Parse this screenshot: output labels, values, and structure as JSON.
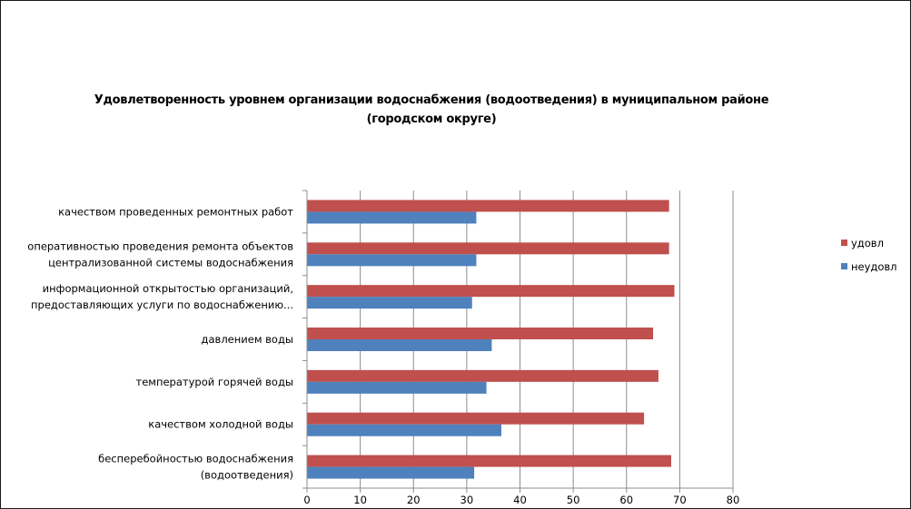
{
  "chart_data": {
    "type": "bar",
    "orientation": "horizontal",
    "title_lines": [
      "Удовлетворенность уровнем организации водоснабжения (водоотведения) в муниципальном районе",
      "(городском округе)"
    ],
    "categories": [
      [
        "качеством проведенных ремонтных работ"
      ],
      [
        "оперативностью проведения ремонта объектов",
        "централизованной системы водоснабжения"
      ],
      [
        "информационной открытостью организаций,",
        "предоставляющих услуги по водоснабжению..."
      ],
      [
        "давлением воды"
      ],
      [
        "температурой горячей воды"
      ],
      [
        "качеством холодной воды"
      ],
      [
        "бесперебойностью водоснабжения",
        "(водоотведения)"
      ]
    ],
    "series": [
      {
        "name": "удовл",
        "color": "#c0504d",
        "values": [
          68,
          68,
          69,
          65,
          66,
          63.3,
          68.4
        ]
      },
      {
        "name": "неудовл",
        "color": "#4f81bd",
        "values": [
          31.8,
          31.8,
          31,
          34.7,
          33.7,
          36.5,
          31.4
        ]
      }
    ],
    "xlim": [
      0,
      80
    ],
    "xticks": [
      0,
      10,
      20,
      30,
      40,
      50,
      60,
      70,
      80
    ],
    "grid": "vertical",
    "legend": "right"
  }
}
